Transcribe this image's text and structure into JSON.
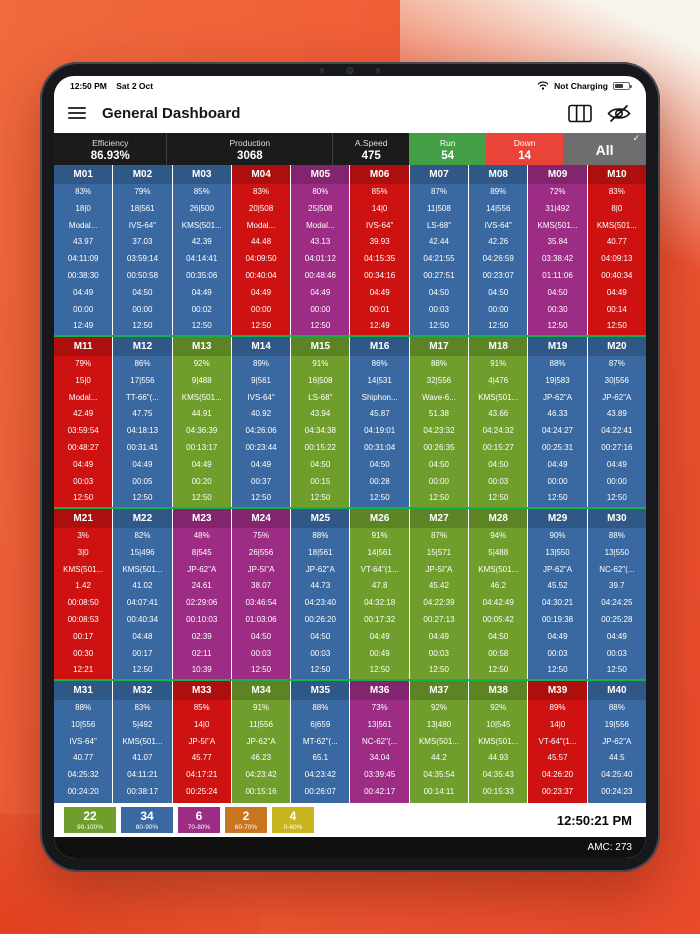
{
  "status_bar": {
    "time": "12:50 PM",
    "date": "Sat 2 Oct",
    "right_text": "Not Charging"
  },
  "header": {
    "title": "General Dashboard"
  },
  "stats": {
    "items": [
      {
        "label": "Efficiency",
        "value": "86.93%"
      },
      {
        "label": "Production",
        "value": "3068"
      },
      {
        "label": "A.Speed",
        "value": "475"
      },
      {
        "label": "Run",
        "value": "54"
      },
      {
        "label": "Down",
        "value": "14"
      }
    ],
    "all_label": "All",
    "check": "✓"
  },
  "colors": {
    "tile": {
      "blue": "#3a69a1",
      "red": "#ce1212",
      "green": "#6f9e2c",
      "purple": "#9c2c84"
    },
    "run": "#43a047",
    "down": "#e94437",
    "all": "#6e6e6e",
    "separator": "#14b14b"
  },
  "machines": [
    {
      "id": "M01",
      "color": "blue",
      "lines": [
        "83%",
        "18|0",
        "Modal...",
        "43.97",
        "04:11:09",
        "00:38:30",
        "04:49",
        "00:00",
        "12:49"
      ]
    },
    {
      "id": "M02",
      "color": "blue",
      "lines": [
        "79%",
        "18|561",
        "IVS-64\"",
        "37.03",
        "03:59:14",
        "00:50:58",
        "04:50",
        "00:00",
        "12:50"
      ]
    },
    {
      "id": "M03",
      "color": "blue",
      "lines": [
        "85%",
        "26|500",
        "KMS(501...",
        "42.39",
        "04:14:41",
        "00:35:06",
        "04:49",
        "00:02",
        "12:50"
      ]
    },
    {
      "id": "M04",
      "color": "red",
      "lines": [
        "83%",
        "20|508",
        "Modal...",
        "44.48",
        "04:09:50",
        "00:40:04",
        "04:49",
        "00:00",
        "12:50"
      ]
    },
    {
      "id": "M05",
      "color": "purple",
      "lines": [
        "80%",
        "25|508",
        "Modal...",
        "43.13",
        "04:01:12",
        "00:48:46",
        "04:49",
        "00:00",
        "12:50"
      ]
    },
    {
      "id": "M06",
      "color": "red",
      "lines": [
        "85%",
        "14|0",
        "IVS-64\"",
        "39.93",
        "04:15:35",
        "00:34:16",
        "04:49",
        "00:01",
        "12:49"
      ]
    },
    {
      "id": "M07",
      "color": "blue",
      "lines": [
        "87%",
        "11|508",
        "LS-68\"",
        "42.44",
        "04:21:55",
        "00:27:51",
        "04:50",
        "00:03",
        "12:50"
      ]
    },
    {
      "id": "M08",
      "color": "blue",
      "lines": [
        "89%",
        "14|556",
        "IVS-64\"",
        "42.26",
        "04:26:59",
        "00:23:07",
        "04:50",
        "00:00",
        "12:50"
      ]
    },
    {
      "id": "M09",
      "color": "purple",
      "lines": [
        "72%",
        "31|492",
        "KMS(501...",
        "35.84",
        "03:38:42",
        "01:11:06",
        "04:50",
        "00:30",
        "12:50"
      ]
    },
    {
      "id": "M10",
      "color": "red",
      "lines": [
        "83%",
        "8|0",
        "KMS(501...",
        "40.77",
        "04:09:13",
        "00:40:34",
        "04:49",
        "00:14",
        "12:50"
      ]
    },
    {
      "id": "M11",
      "color": "red",
      "lines": [
        "79%",
        "15|0",
        "Modal...",
        "42.49",
        "03:59:54",
        "00:48:27",
        "04:49",
        "00:03",
        "12:50"
      ]
    },
    {
      "id": "M12",
      "color": "blue",
      "lines": [
        "86%",
        "17|556",
        "TT-66\"(...",
        "47.75",
        "04:18:13",
        "00:31:41",
        "04:49",
        "00:05",
        "12:50"
      ]
    },
    {
      "id": "M13",
      "color": "green",
      "lines": [
        "92%",
        "9|488",
        "KMS(501...",
        "44.91",
        "04:36:39",
        "00:13:17",
        "04:49",
        "00:20",
        "12:50"
      ]
    },
    {
      "id": "M14",
      "color": "blue",
      "lines": [
        "89%",
        "9|561",
        "IVS-64\"",
        "40.92",
        "04:26:06",
        "00:23:44",
        "04:49",
        "00:37",
        "12:50"
      ]
    },
    {
      "id": "M15",
      "color": "green",
      "lines": [
        "91%",
        "16|508",
        "LS-68\"",
        "43.94",
        "04:34:38",
        "00:15:22",
        "04:50",
        "00:15",
        "12:50"
      ]
    },
    {
      "id": "M16",
      "color": "blue",
      "lines": [
        "86%",
        "14|531",
        "Shiphon...",
        "45.87",
        "04:19:01",
        "00:31:04",
        "04:50",
        "00:28",
        "12:50"
      ]
    },
    {
      "id": "M17",
      "color": "green",
      "lines": [
        "88%",
        "32|556",
        "Wave-6...",
        "51.38",
        "04:23:32",
        "00:26:35",
        "04:50",
        "00:00",
        "12:50"
      ]
    },
    {
      "id": "M18",
      "color": "green",
      "lines": [
        "91%",
        "4|476",
        "KMS(501...",
        "43.66",
        "04:24:32",
        "00:15:27",
        "04:50",
        "00:03",
        "12:50"
      ]
    },
    {
      "id": "M19",
      "color": "blue",
      "lines": [
        "88%",
        "19|583",
        "JP-62\"A",
        "46.33",
        "04:24:27",
        "00:25:31",
        "04:49",
        "00:00",
        "12:50"
      ]
    },
    {
      "id": "M20",
      "color": "blue",
      "lines": [
        "87%",
        "30|556",
        "JP-62\"A",
        "43.89",
        "04:22:41",
        "00:27:16",
        "04:49",
        "00:00",
        "12:50"
      ]
    },
    {
      "id": "M21",
      "color": "red",
      "lines": [
        "3%",
        "3|0",
        "KMS(501...",
        "1.42",
        "00:08:50",
        "00:08:53",
        "00:17",
        "00:30",
        "12:21"
      ]
    },
    {
      "id": "M22",
      "color": "blue",
      "lines": [
        "82%",
        "15|496",
        "KMS(501...",
        "41.02",
        "04:07:41",
        "00:40:34",
        "04:48",
        "00:17",
        "12:50"
      ]
    },
    {
      "id": "M23",
      "color": "purple",
      "lines": [
        "48%",
        "8|545",
        "JP-62\"A",
        "24.61",
        "02:29:06",
        "00:10:03",
        "02:39",
        "02:11",
        "10:39"
      ]
    },
    {
      "id": "M24",
      "color": "purple",
      "lines": [
        "75%",
        "26|556",
        "JP-5I\"A",
        "38.07",
        "03:46:54",
        "01:03:06",
        "04:50",
        "00:03",
        "12:50"
      ]
    },
    {
      "id": "M25",
      "color": "blue",
      "lines": [
        "88%",
        "18|561",
        "JP-62\"A",
        "44.73",
        "04:23:40",
        "00:26:20",
        "04:50",
        "00:03",
        "12:50"
      ]
    },
    {
      "id": "M26",
      "color": "green",
      "lines": [
        "91%",
        "14|561",
        "VT-64\"(1...",
        "47.8",
        "04:32:18",
        "00:17:32",
        "04:49",
        "00:49",
        "12:50"
      ]
    },
    {
      "id": "M27",
      "color": "green",
      "lines": [
        "87%",
        "15|571",
        "JP-5I\"A",
        "45.42",
        "04:22:39",
        "00:27:13",
        "04:49",
        "00:03",
        "12:50"
      ]
    },
    {
      "id": "M28",
      "color": "green",
      "lines": [
        "94%",
        "5|488",
        "KMS(501...",
        "46.2",
        "04:42:49",
        "00:05:42",
        "04:50",
        "00:58",
        "12:50"
      ]
    },
    {
      "id": "M29",
      "color": "blue",
      "lines": [
        "90%",
        "13|550",
        "JP-62\"A",
        "45.52",
        "04:30:21",
        "00:19:38",
        "04:49",
        "00:03",
        "12:50"
      ]
    },
    {
      "id": "M30",
      "color": "blue",
      "lines": [
        "88%",
        "13|550",
        "NC-62\"(...",
        "39.7",
        "04:24:25",
        "00:25:28",
        "04:49",
        "00:03",
        "12:50"
      ]
    },
    {
      "id": "M31",
      "color": "blue",
      "lines": [
        "88%",
        "10|556",
        "IVS-64\"",
        "40.77",
        "04:25:32",
        "00:24:20"
      ]
    },
    {
      "id": "M32",
      "color": "blue",
      "lines": [
        "83%",
        "5|492",
        "KMS(501...",
        "41.07",
        "04:11:21",
        "00:38:17"
      ]
    },
    {
      "id": "M33",
      "color": "red",
      "lines": [
        "85%",
        "14|0",
        "JP-5I\"A",
        "45.77",
        "04:17:21",
        "00:25:24"
      ]
    },
    {
      "id": "M34",
      "color": "green",
      "lines": [
        "91%",
        "11|556",
        "JP-62\"A",
        "46.23",
        "04:23:42",
        "00:15:16"
      ]
    },
    {
      "id": "M35",
      "color": "blue",
      "lines": [
        "88%",
        "6|659",
        "MT-62\"(...",
        "65.1",
        "04:23:42",
        "00:26:07"
      ]
    },
    {
      "id": "M36",
      "color": "purple",
      "lines": [
        "73%",
        "13|561",
        "NC-62\"(...",
        "34.04",
        "03:39:45",
        "00:42:17"
      ]
    },
    {
      "id": "M37",
      "color": "green",
      "lines": [
        "92%",
        "13|480",
        "KMS(501...",
        "44.2",
        "04:35:54",
        "00:14:11"
      ]
    },
    {
      "id": "M38",
      "color": "green",
      "lines": [
        "92%",
        "10|545",
        "KMS(501...",
        "44.93",
        "04:35:43",
        "00:15:33"
      ]
    },
    {
      "id": "M39",
      "color": "red",
      "lines": [
        "89%",
        "14|0",
        "VT-64\"(1...",
        "45.57",
        "04:26:20",
        "00:23:37"
      ]
    },
    {
      "id": "M40",
      "color": "blue",
      "lines": [
        "88%",
        "19|556",
        "JP-62\"A",
        "44.5",
        "04:25:40",
        "00:24:23"
      ]
    }
  ],
  "legend": {
    "items": [
      {
        "count": "22",
        "range": "90-100%",
        "color": "#6f9e2c"
      },
      {
        "count": "34",
        "range": "80-90%",
        "color": "#3a69a1"
      },
      {
        "count": "6",
        "range": "70-80%",
        "color": "#9c2c84"
      },
      {
        "count": "2",
        "range": "60-70%",
        "color": "#c9741e"
      },
      {
        "count": "4",
        "range": "0-60%",
        "color": "#c9b41f"
      }
    ],
    "clock": "12:50:21 PM"
  },
  "footer": {
    "amc": "AMC: 273"
  }
}
